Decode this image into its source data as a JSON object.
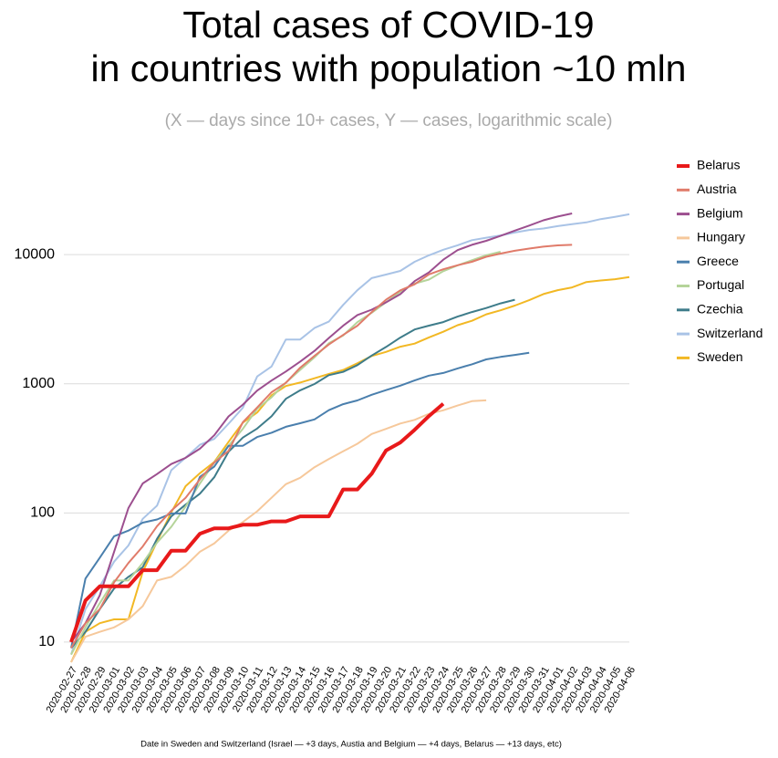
{
  "chart_data": {
    "type": "line",
    "title": [
      "Total cases of COVID-19",
      "in countries with population ~10 mln"
    ],
    "subtitle": "(X — days since 10+ cases, Y — cases, logarithmic scale)",
    "x_label": "Date in Sweden and Switzerland (Israel — +3 days, Austia and Belgium — +4 days, Belarus — +13 days, etc)",
    "categories": [
      "2020-02-27",
      "2020-02-28",
      "2020-02-29",
      "2020-03-01",
      "2020-03-02",
      "2020-03-03",
      "2020-03-04",
      "2020-03-05",
      "2020-03-06",
      "2020-03-07",
      "2020-03-08",
      "2020-03-09",
      "2020-03-10",
      "2020-03-11",
      "2020-03-12",
      "2020-03-13",
      "2020-03-14",
      "2020-03-15",
      "2020-03-16",
      "2020-03-17",
      "2020-03-18",
      "2020-03-19",
      "2020-03-20",
      "2020-03-21",
      "2020-03-22",
      "2020-03-23",
      "2020-03-24",
      "2020-03-25",
      "2020-03-26",
      "2020-03-27",
      "2020-03-28",
      "2020-03-29",
      "2020-03-30",
      "2020-03-31",
      "2020-04-01",
      "2020-04-02",
      "2020-04-03",
      "2020-04-04",
      "2020-04-05",
      "2020-04-06"
    ],
    "ylog": true,
    "ylim": [
      7.7,
      38000
    ],
    "yticks": [
      10,
      100,
      1000,
      10000
    ],
    "grid": true,
    "legend": "right",
    "series": [
      {
        "name": "Belarus",
        "color": "#e8191a",
        "width": 4,
        "values": [
          10,
          21,
          27,
          27,
          27,
          36,
          36,
          51,
          51,
          69,
          76,
          76,
          81,
          81,
          86,
          86,
          94,
          94,
          94,
          152,
          152,
          201,
          304,
          351,
          440,
          562,
          700,
          null,
          null,
          null,
          null,
          null,
          null,
          null,
          null,
          null,
          null,
          null,
          null,
          null
        ]
      },
      {
        "name": "Austria",
        "color": "#e07b6a",
        "width": 2,
        "values": [
          9,
          14,
          18,
          29,
          41,
          55,
          79,
          104,
          131,
          182,
          246,
          302,
          504,
          655,
          860,
          1016,
          1332,
          1646,
          2013,
          2388,
          2814,
          3582,
          4474,
          5283,
          5888,
          7029,
          7697,
          8271,
          8788,
          9618,
          10180,
          10711,
          11129,
          11524,
          11781,
          11900,
          null,
          null,
          null,
          null
        ]
      },
      {
        "name": "Belgium",
        "color": "#9c4f8f",
        "width": 2,
        "values": [
          10,
          14,
          23,
          50,
          109,
          169,
          200,
          239,
          267,
          314,
          399,
          559,
          689,
          886,
          1058,
          1243,
          1486,
          1795,
          2257,
          2815,
          3401,
          3743,
          4269,
          4937,
          6235,
          7284,
          9134,
          10836,
          11899,
          12775,
          13964,
          15348,
          16770,
          18431,
          19691,
          20814,
          null,
          null,
          null,
          null
        ]
      },
      {
        "name": "Hungary",
        "color": "#f6c89b",
        "width": 2,
        "values": [
          7,
          11,
          12,
          13,
          15,
          19,
          30,
          32,
          39,
          50,
          58,
          73,
          85,
          103,
          131,
          167,
          187,
          226,
          261,
          300,
          343,
          408,
          447,
          492,
          525,
          585,
          623,
          678,
          733,
          744,
          null,
          null,
          null,
          null,
          null,
          null,
          null,
          null,
          null,
          null
        ]
      },
      {
        "name": "Greece",
        "color": "#4a7fad",
        "width": 2,
        "values": [
          9,
          31,
          45,
          66,
          73,
          84,
          89,
          99,
          99,
          190,
          228,
          331,
          331,
          387,
          418,
          464,
          495,
          530,
          624,
          695,
          743,
          821,
          892,
          966,
          1061,
          1156,
          1212,
          1314,
          1415,
          1544,
          1613,
          1673,
          1735,
          null,
          null,
          null,
          null,
          null,
          null,
          null
        ]
      },
      {
        "name": "Portugal",
        "color": "#b5d49a",
        "width": 2,
        "values": [
          8,
          13,
          20,
          30,
          30,
          41,
          59,
          78,
          112,
          169,
          245,
          331,
          448,
          642,
          785,
          1020,
          1280,
          1600,
          2060,
          2362,
          2995,
          3544,
          4268,
          5170,
          5962,
          6408,
          7443,
          8251,
          9034,
          9886,
          10524,
          null,
          null,
          null,
          null,
          null,
          null,
          null,
          null,
          null
        ]
      },
      {
        "name": "Czechia",
        "color": "#3e7c8a",
        "width": 2,
        "values": [
          9,
          12,
          18,
          26,
          32,
          38,
          63,
          94,
          116,
          141,
          189,
          298,
          383,
          450,
          560,
          765,
          889,
          995,
          1165,
          1236,
          1394,
          1654,
          1925,
          2279,
          2631,
          2817,
          3001,
          3308,
          3589,
          3858,
          4190,
          4472,
          null,
          null,
          null,
          null,
          null,
          null,
          null,
          null
        ]
      },
      {
        "name": "Switzerland",
        "color": "#a9c3e6",
        "width": 2,
        "values": [
          8,
          18,
          27,
          42,
          56,
          90,
          114,
          214,
          268,
          337,
          374,
          491,
          652,
          1139,
          1359,
          2200,
          2200,
          2700,
          3028,
          4075,
          5294,
          6575,
          7000,
          7474,
          8795,
          9877,
          10897,
          11811,
          12928,
          13500,
          14076,
          14829,
          15500,
          15922,
          16605,
          17200,
          17768,
          18827,
          19606,
          20505
        ]
      },
      {
        "name": "Sweden",
        "color": "#f2b824",
        "width": 2,
        "values": [
          7,
          12,
          14,
          15,
          15,
          35,
          60,
          101,
          161,
          203,
          248,
          355,
          500,
          599,
          814,
          961,
          1022,
          1103,
          1190,
          1279,
          1439,
          1639,
          1763,
          1934,
          2046,
          2286,
          2526,
          2840,
          3069,
          3447,
          3700,
          4028,
          4435,
          4947,
          5300,
          5568,
          6131,
          6300,
          6443,
          6700
        ]
      }
    ]
  }
}
